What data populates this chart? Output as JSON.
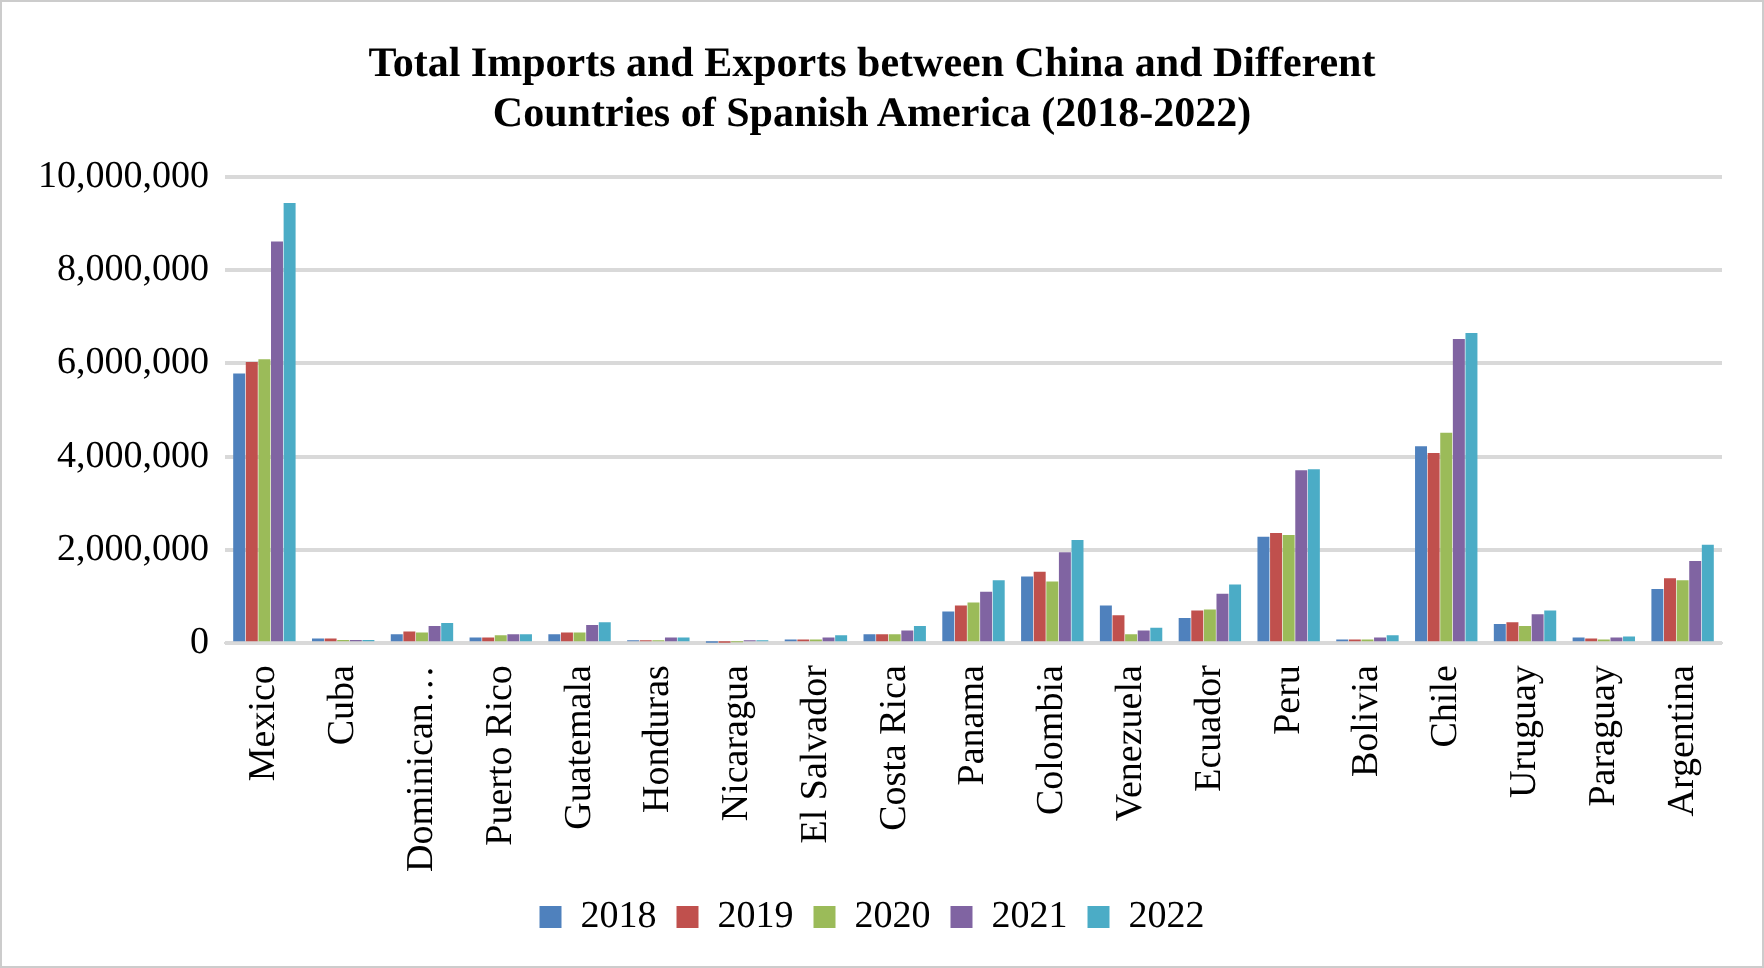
{
  "chart_data": {
    "type": "bar",
    "title": "Total Imports and Exports between China and Different Countries of Spanish America (2018-2022)",
    "categories": [
      "Mexico",
      "Cuba",
      "Dominican…",
      "Puerto Rico",
      "Guatemala",
      "Honduras",
      "Nicaragua",
      "El Salvador",
      "Costa Rica",
      "Panama",
      "Colombia",
      "Venezuela",
      "Ecuador",
      "Peru",
      "Bolivia",
      "Chile",
      "Uruguay",
      "Paraguay",
      "Argentina"
    ],
    "series": [
      {
        "name": "2018",
        "color": "#4f81bd",
        "values": [
          5780000,
          100000,
          190000,
          120000,
          190000,
          60000,
          10000,
          80000,
          190000,
          680000,
          1430000,
          810000,
          540000,
          2280000,
          80000,
          4220000,
          410000,
          120000,
          1160000
        ]
      },
      {
        "name": "2019",
        "color": "#c0504d",
        "values": [
          6030000,
          100000,
          250000,
          120000,
          230000,
          60000,
          10000,
          80000,
          190000,
          810000,
          1530000,
          600000,
          700000,
          2360000,
          80000,
          4080000,
          450000,
          100000,
          1390000
        ]
      },
      {
        "name": "2020",
        "color": "#9bbb59",
        "values": [
          6090000,
          70000,
          230000,
          170000,
          230000,
          60000,
          20000,
          80000,
          190000,
          870000,
          1320000,
          190000,
          720000,
          2320000,
          80000,
          4510000,
          370000,
          80000,
          1350000
        ]
      },
      {
        "name": "2021",
        "color": "#8064a2",
        "values": [
          8610000,
          70000,
          370000,
          190000,
          390000,
          120000,
          60000,
          120000,
          270000,
          1100000,
          1950000,
          270000,
          1060000,
          3710000,
          120000,
          6520000,
          620000,
          120000,
          1760000
        ]
      },
      {
        "name": "2022",
        "color": "#4bacc6",
        "values": [
          9440000,
          70000,
          430000,
          190000,
          450000,
          120000,
          60000,
          170000,
          370000,
          1350000,
          2210000,
          330000,
          1260000,
          3730000,
          170000,
          6650000,
          700000,
          140000,
          2110000
        ]
      }
    ],
    "ylim": [
      0,
      10000000
    ],
    "yticks": [
      {
        "value": 0,
        "label": "0"
      },
      {
        "value": 2000000,
        "label": "2,000,000"
      },
      {
        "value": 4000000,
        "label": "4,000,000"
      },
      {
        "value": 6000000,
        "label": "6,000,000"
      },
      {
        "value": 8000000,
        "label": "8,000,000"
      },
      {
        "value": 10000000,
        "label": "10,000,000"
      }
    ],
    "grid": "y",
    "legend": "bottom"
  }
}
